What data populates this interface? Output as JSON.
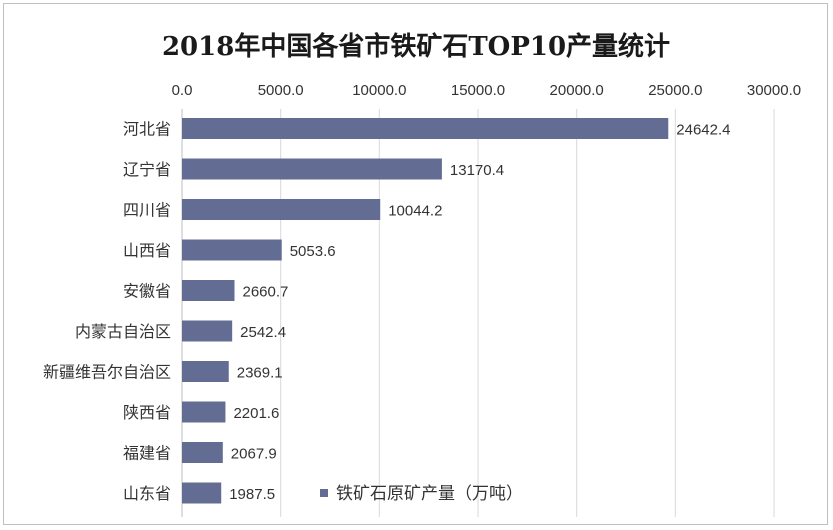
{
  "chart_data": {
    "type": "bar",
    "orientation": "horizontal",
    "title": "2018年中国各省市铁矿石TOP10产量统计",
    "categories": [
      "河北省",
      "辽宁省",
      "四川省",
      "山西省",
      "安徽省",
      "内蒙古自治区",
      "新疆维吾尔自治区",
      "陕西省",
      "福建省",
      "山东省"
    ],
    "series": [
      {
        "name": "铁矿石原矿产量（万吨）",
        "values": [
          24642.4,
          13170.4,
          10044.2,
          5053.6,
          2660.7,
          2542.4,
          2369.1,
          2201.6,
          2067.9,
          1987.5
        ],
        "labels": [
          "24642.4",
          "13170.4",
          "10044.2",
          "5053.6",
          "2660.7",
          "2542.4",
          "2369.1",
          "2201.6",
          "2067.9",
          "1987.5"
        ],
        "color": "#636c93"
      }
    ],
    "xlim": [
      0,
      30000
    ],
    "x_ticks": [
      "0.0",
      "5000.0",
      "10000.0",
      "15000.0",
      "20000.0",
      "25000.0",
      "30000.0"
    ],
    "x_axis_position": "top",
    "grid": true,
    "gridline_color": "#d9d9d9",
    "legend": {
      "position": "bottom-right-inside"
    }
  }
}
